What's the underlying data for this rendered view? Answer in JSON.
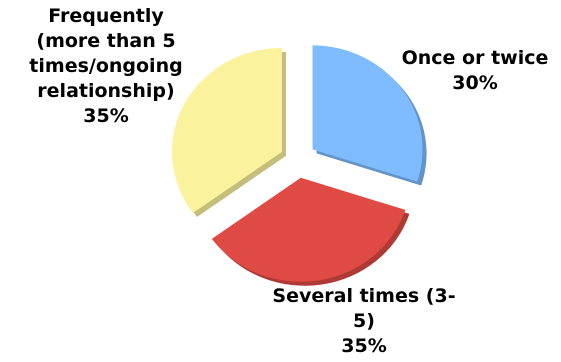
{
  "chart_data": {
    "type": "pie",
    "title": "",
    "slices": [
      {
        "category": "Once or twice",
        "value": 30,
        "value_label": "30%",
        "label_lines": [
          "Once or twice"
        ],
        "color": "#7fbcff"
      },
      {
        "category": "Several times (3-5)",
        "value": 35,
        "value_label": "35%",
        "label_lines": [
          "Several times (3-",
          "5)"
        ],
        "color": "#e04a44"
      },
      {
        "category": "Frequently (more than 5 times/ongoing relationship)",
        "value": 35,
        "value_label": "35%",
        "label_lines": [
          "Frequently",
          "(more than 5",
          "times/ongoing",
          "relationship)"
        ],
        "color": "#fbf29e"
      }
    ],
    "exploded": true,
    "legend": "none"
  }
}
